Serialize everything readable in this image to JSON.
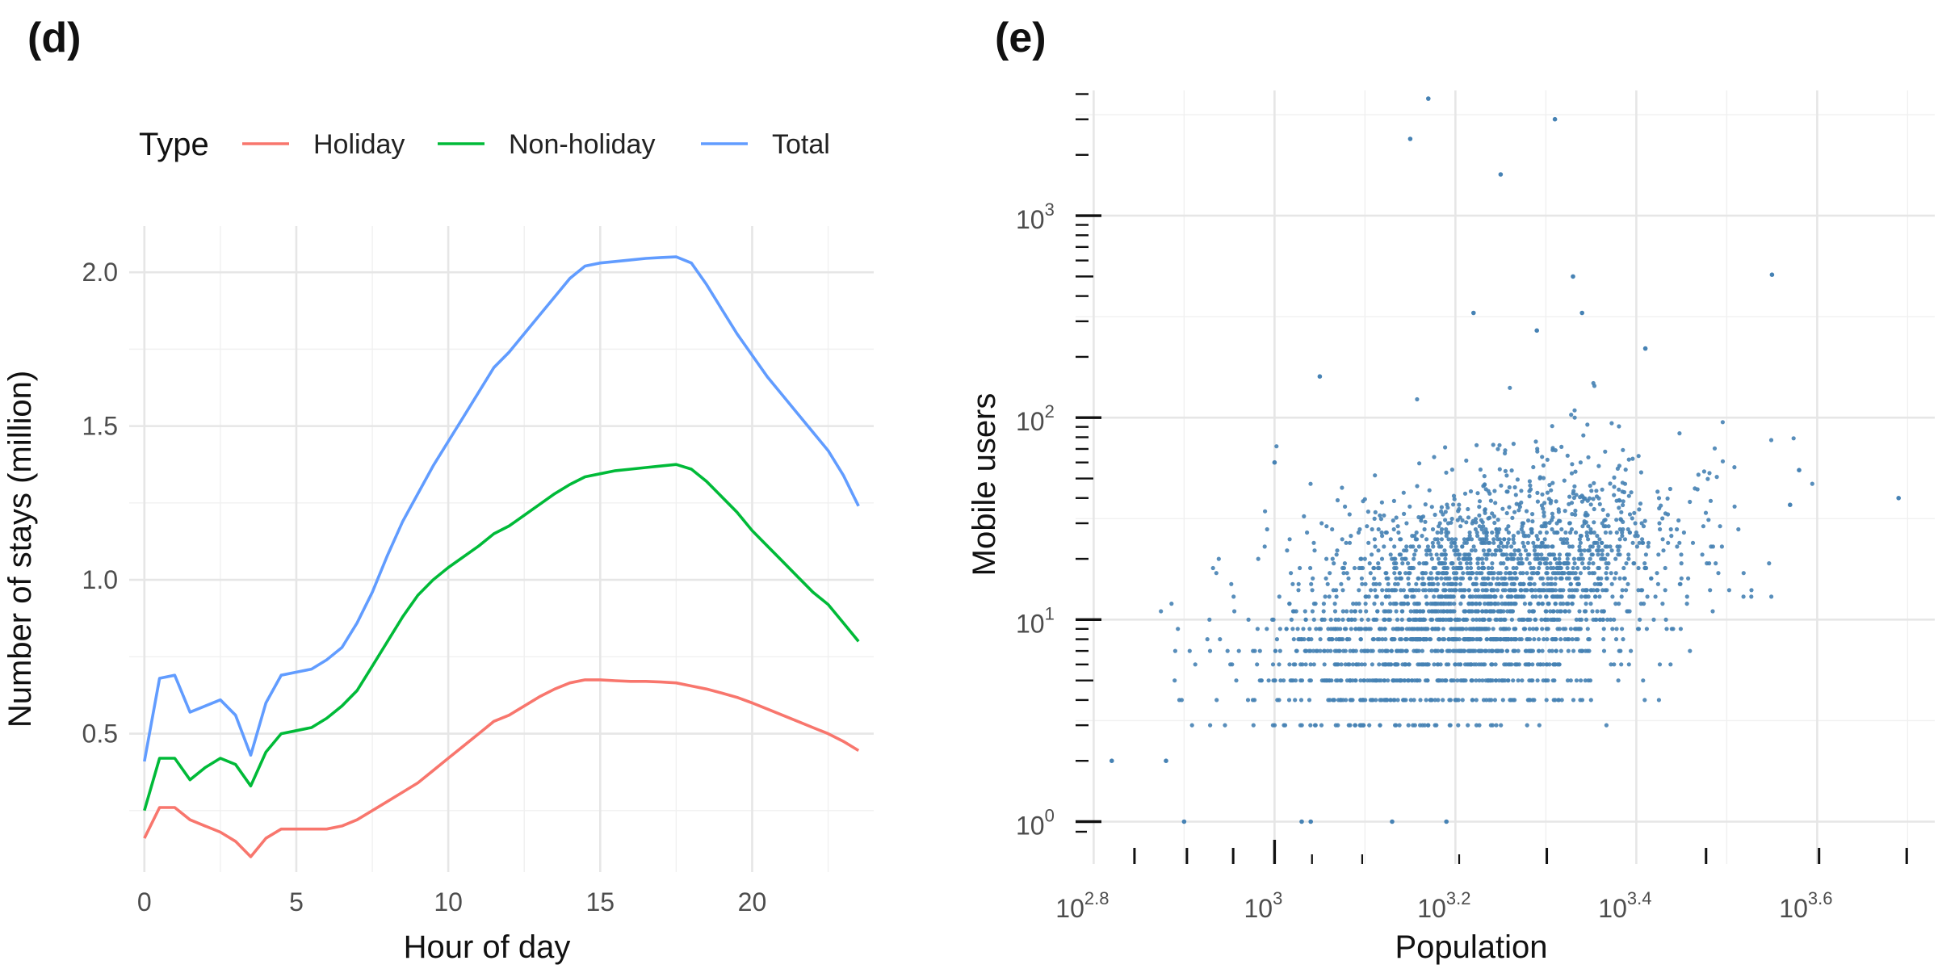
{
  "chart_data": [
    {
      "type": "line",
      "panel_label": "(d)",
      "title": "",
      "xlabel": "Hour of day",
      "ylabel": "Number of stays (million)",
      "xlim": [
        -0.5,
        24
      ],
      "ylim": [
        0.05,
        2.15
      ],
      "xticks": [
        0,
        5,
        10,
        15,
        20
      ],
      "xtick_labels": [
        "0",
        "5",
        "10",
        "15",
        "20"
      ],
      "yticks": [
        0.5,
        1.0,
        1.5,
        2.0
      ],
      "ytick_labels": [
        "0.5",
        "1.0",
        "1.5",
        "2.0"
      ],
      "grid": true,
      "legend": {
        "title": "Type",
        "position": "top"
      },
      "x": [
        0,
        0.5,
        1,
        1.5,
        2,
        2.5,
        3,
        3.5,
        4,
        4.5,
        5,
        5.5,
        6,
        6.5,
        7,
        7.5,
        8,
        8.5,
        9,
        9.5,
        10,
        10.5,
        11,
        11.5,
        12,
        12.5,
        13,
        13.5,
        14,
        14.5,
        15,
        15.5,
        16,
        16.5,
        17,
        17.5,
        18,
        18.5,
        19,
        19.5,
        20,
        20.5,
        21,
        21.5,
        22,
        22.5,
        23,
        23.5
      ],
      "series": [
        {
          "name": "Holiday",
          "color": "#F8766D",
          "values": [
            0.16,
            0.26,
            0.26,
            0.22,
            0.2,
            0.18,
            0.15,
            0.1,
            0.16,
            0.19,
            0.19,
            0.19,
            0.19,
            0.2,
            0.22,
            0.25,
            0.28,
            0.31,
            0.34,
            0.38,
            0.42,
            0.46,
            0.5,
            0.54,
            0.56,
            0.59,
            0.62,
            0.645,
            0.665,
            0.675,
            0.675,
            0.672,
            0.67,
            0.67,
            0.668,
            0.665,
            0.655,
            0.645,
            0.632,
            0.618,
            0.6,
            0.58,
            0.56,
            0.54,
            0.52,
            0.5,
            0.475,
            0.445
          ]
        },
        {
          "name": "Non-holiday",
          "color": "#00BA38",
          "values": [
            0.25,
            0.42,
            0.42,
            0.35,
            0.39,
            0.42,
            0.4,
            0.33,
            0.44,
            0.5,
            0.51,
            0.52,
            0.55,
            0.59,
            0.64,
            0.72,
            0.8,
            0.88,
            0.95,
            1.0,
            1.04,
            1.075,
            1.11,
            1.15,
            1.175,
            1.21,
            1.245,
            1.28,
            1.31,
            1.335,
            1.345,
            1.355,
            1.36,
            1.365,
            1.37,
            1.375,
            1.36,
            1.32,
            1.27,
            1.22,
            1.16,
            1.11,
            1.06,
            1.01,
            0.96,
            0.92,
            0.86,
            0.8
          ]
        },
        {
          "name": "Total",
          "color": "#619CFF",
          "values": [
            0.41,
            0.68,
            0.69,
            0.57,
            0.59,
            0.61,
            0.56,
            0.43,
            0.6,
            0.69,
            0.7,
            0.71,
            0.74,
            0.78,
            0.86,
            0.96,
            1.08,
            1.19,
            1.28,
            1.37,
            1.45,
            1.53,
            1.61,
            1.69,
            1.74,
            1.8,
            1.86,
            1.92,
            1.98,
            2.02,
            2.03,
            2.035,
            2.04,
            2.045,
            2.048,
            2.05,
            2.03,
            1.96,
            1.88,
            1.8,
            1.73,
            1.66,
            1.6,
            1.54,
            1.48,
            1.42,
            1.34,
            1.24
          ]
        }
      ]
    },
    {
      "type": "scatter",
      "panel_label": "(e)",
      "title": "",
      "xlabel": "Population",
      "ylabel": "Mobile users",
      "x_scale": "log10",
      "y_scale": "log10",
      "xlim_log10": [
        2.78,
        3.73
      ],
      "ylim_log10": [
        -0.12,
        0.93
      ],
      "x_tick_labels": [
        {
          "base": "10",
          "exp": "2.8",
          "log10": 2.8
        },
        {
          "base": "10",
          "exp": "3",
          "log10": 3.0
        },
        {
          "base": "10",
          "exp": "3.2",
          "log10": 3.2
        },
        {
          "base": "10",
          "exp": "3.4",
          "log10": 3.4
        },
        {
          "base": "10",
          "exp": "3.6",
          "log10": 3.6
        }
      ],
      "y_tick_labels": [
        {
          "base": "10",
          "exp": "0",
          "log10": 0
        },
        {
          "base": "10",
          "exp": "1",
          "log10": 1
        },
        {
          "base": "10",
          "exp": "2",
          "log10": 2
        },
        {
          "base": "10",
          "exp": "3",
          "log10": 3
        }
      ],
      "grid": true,
      "point_color": "#4682B4",
      "outliers": [
        {
          "population_log10": 3.17,
          "users": 3800
        },
        {
          "population_log10": 3.15,
          "users": 2400
        },
        {
          "population_log10": 3.31,
          "users": 3000
        },
        {
          "population_log10": 3.25,
          "users": 1600
        },
        {
          "population_log10": 3.33,
          "users": 500
        },
        {
          "population_log10": 3.55,
          "users": 510
        },
        {
          "population_log10": 3.22,
          "users": 330
        },
        {
          "population_log10": 3.34,
          "users": 330
        },
        {
          "population_log10": 3.29,
          "users": 270
        },
        {
          "population_log10": 3.41,
          "users": 220
        },
        {
          "population_log10": 3.05,
          "users": 160
        },
        {
          "population_log10": 3.69,
          "users": 40
        },
        {
          "population_log10": 3.58,
          "users": 55
        },
        {
          "population_log10": 3.57,
          "users": 37
        },
        {
          "population_log10": 3.0,
          "users": 60
        },
        {
          "population_log10": 2.82,
          "users": 2
        },
        {
          "population_log10": 2.88,
          "users": 2
        },
        {
          "population_log10": 2.9,
          "users": 1
        },
        {
          "population_log10": 3.04,
          "users": 1
        },
        {
          "population_log10": 3.03,
          "users": 1
        },
        {
          "population_log10": 3.13,
          "users": 1
        },
        {
          "population_log10": 3.19,
          "users": 1
        }
      ],
      "bulk_distribution": {
        "population_log10_center": 3.22,
        "population_log10_spread": 0.11,
        "users_log10_center": 1.1,
        "users_log10_spread": 0.28,
        "population_users_slope": 1.1,
        "point_count": 2600
      }
    }
  ]
}
